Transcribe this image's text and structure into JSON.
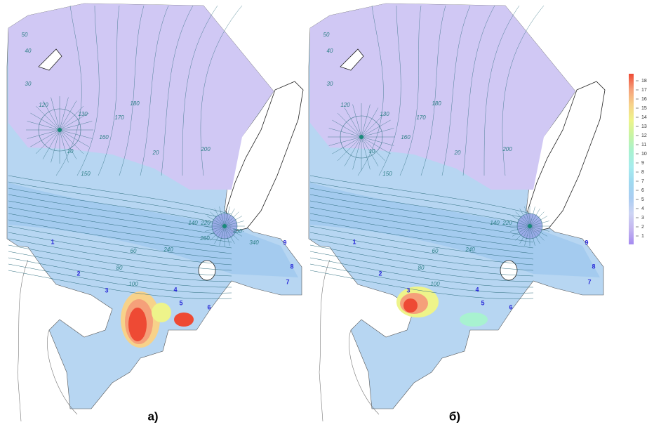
{
  "panels": [
    {
      "label": "а)",
      "stations": [
        "1",
        "2",
        "3",
        "4",
        "5",
        "6",
        "7",
        "8",
        "9"
      ],
      "contour_labels": [
        50,
        40,
        30,
        120,
        130,
        150,
        160,
        170,
        180,
        200,
        220,
        140,
        20,
        10,
        60,
        80,
        100,
        240,
        260,
        300,
        340
      ]
    },
    {
      "label": "б)",
      "stations": [
        "1",
        "2",
        "3",
        "4",
        "5",
        "6",
        "7",
        "8",
        "9"
      ],
      "contour_labels": [
        50,
        40,
        30,
        120,
        130,
        150,
        160,
        170,
        180,
        200,
        220,
        140,
        20,
        10,
        60,
        80,
        100,
        240
      ]
    }
  ],
  "colorbar": {
    "ticks": [
      1,
      2,
      3,
      4,
      5,
      6,
      7,
      8,
      9,
      10,
      11,
      12,
      13,
      14,
      15,
      16,
      17,
      18
    ],
    "colors": [
      "#a58af0",
      "#c4b6f0",
      "#cdd4f4",
      "#a9cdf2",
      "#9fd9f0",
      "#a6ecee",
      "#a8f2d0",
      "#c6f4a4",
      "#eef48a",
      "#f7d28a",
      "#f5a07a",
      "#ee4a34"
    ]
  }
}
